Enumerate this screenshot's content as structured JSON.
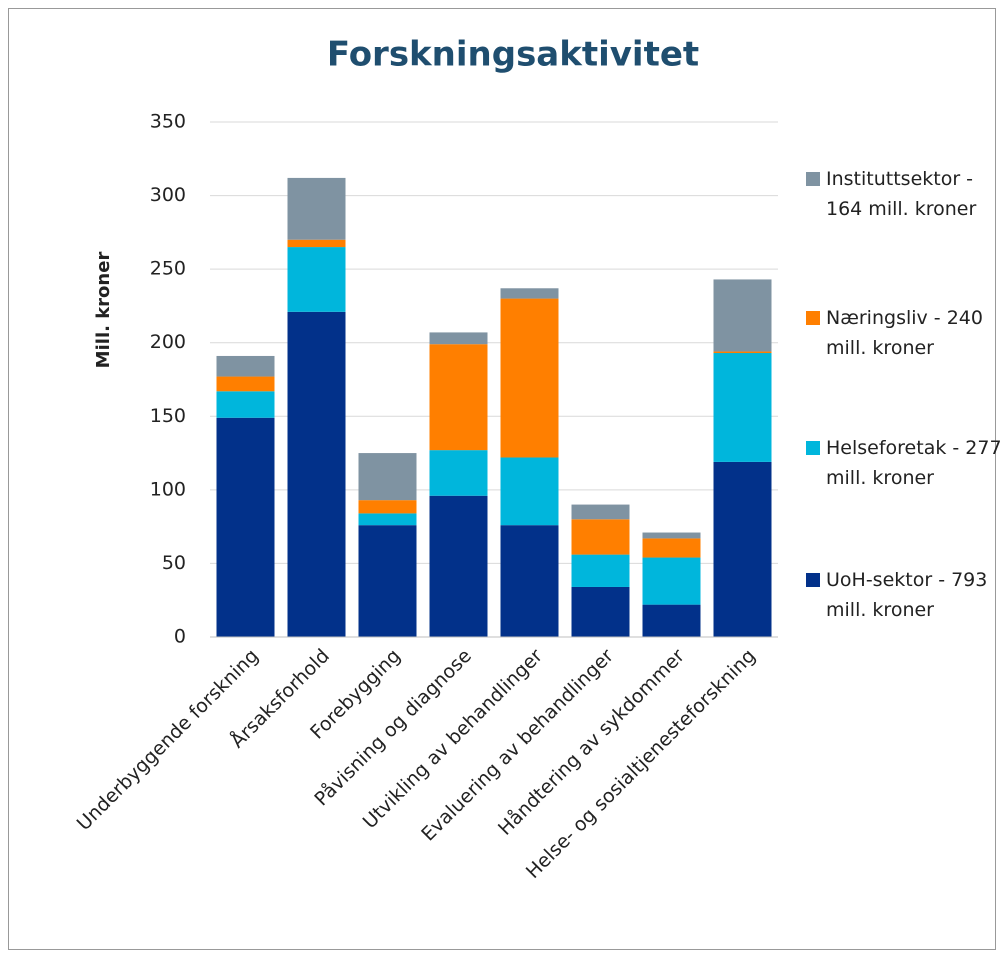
{
  "chart_data": {
    "type": "stacked_bar",
    "title": "Forskningsaktivitet",
    "y_label": "Mill. kroner",
    "categories": [
      "Underbyggende forskning",
      "Årsaksforhold",
      "Forebygging",
      "Påvisning og diagnose",
      "Utvikling av behandlinger",
      "Evaluering av behandlinger",
      "Håndtering av sykdommer",
      "Helse- og sosialtjenesteforskning"
    ],
    "series": [
      {
        "name": "UoH-sektor - 793 mill. kroner",
        "color": "#02318a",
        "values": [
          149,
          221,
          76,
          96,
          76,
          34,
          22,
          119
        ]
      },
      {
        "name": "Helseforetak - 277 mill. kroner",
        "color": "#00b6dc",
        "values": [
          18,
          44,
          8,
          31,
          46,
          22,
          32,
          74
        ]
      },
      {
        "name": "Næringsliv - 240 mill. kroner",
        "color": "#ff7f00",
        "values": [
          10,
          5,
          9,
          72,
          108,
          24,
          13,
          1
        ]
      },
      {
        "name": "Instituttsektor - 164 mill. kroner",
        "color": "#7f93a2",
        "values": [
          14,
          42,
          32,
          8,
          7,
          10,
          4,
          49
        ]
      }
    ],
    "ylim": [
      0,
      350
    ],
    "yticks": [
      0,
      50,
      100,
      150,
      200,
      250,
      300,
      350
    ],
    "grid": true,
    "legend": "right"
  }
}
